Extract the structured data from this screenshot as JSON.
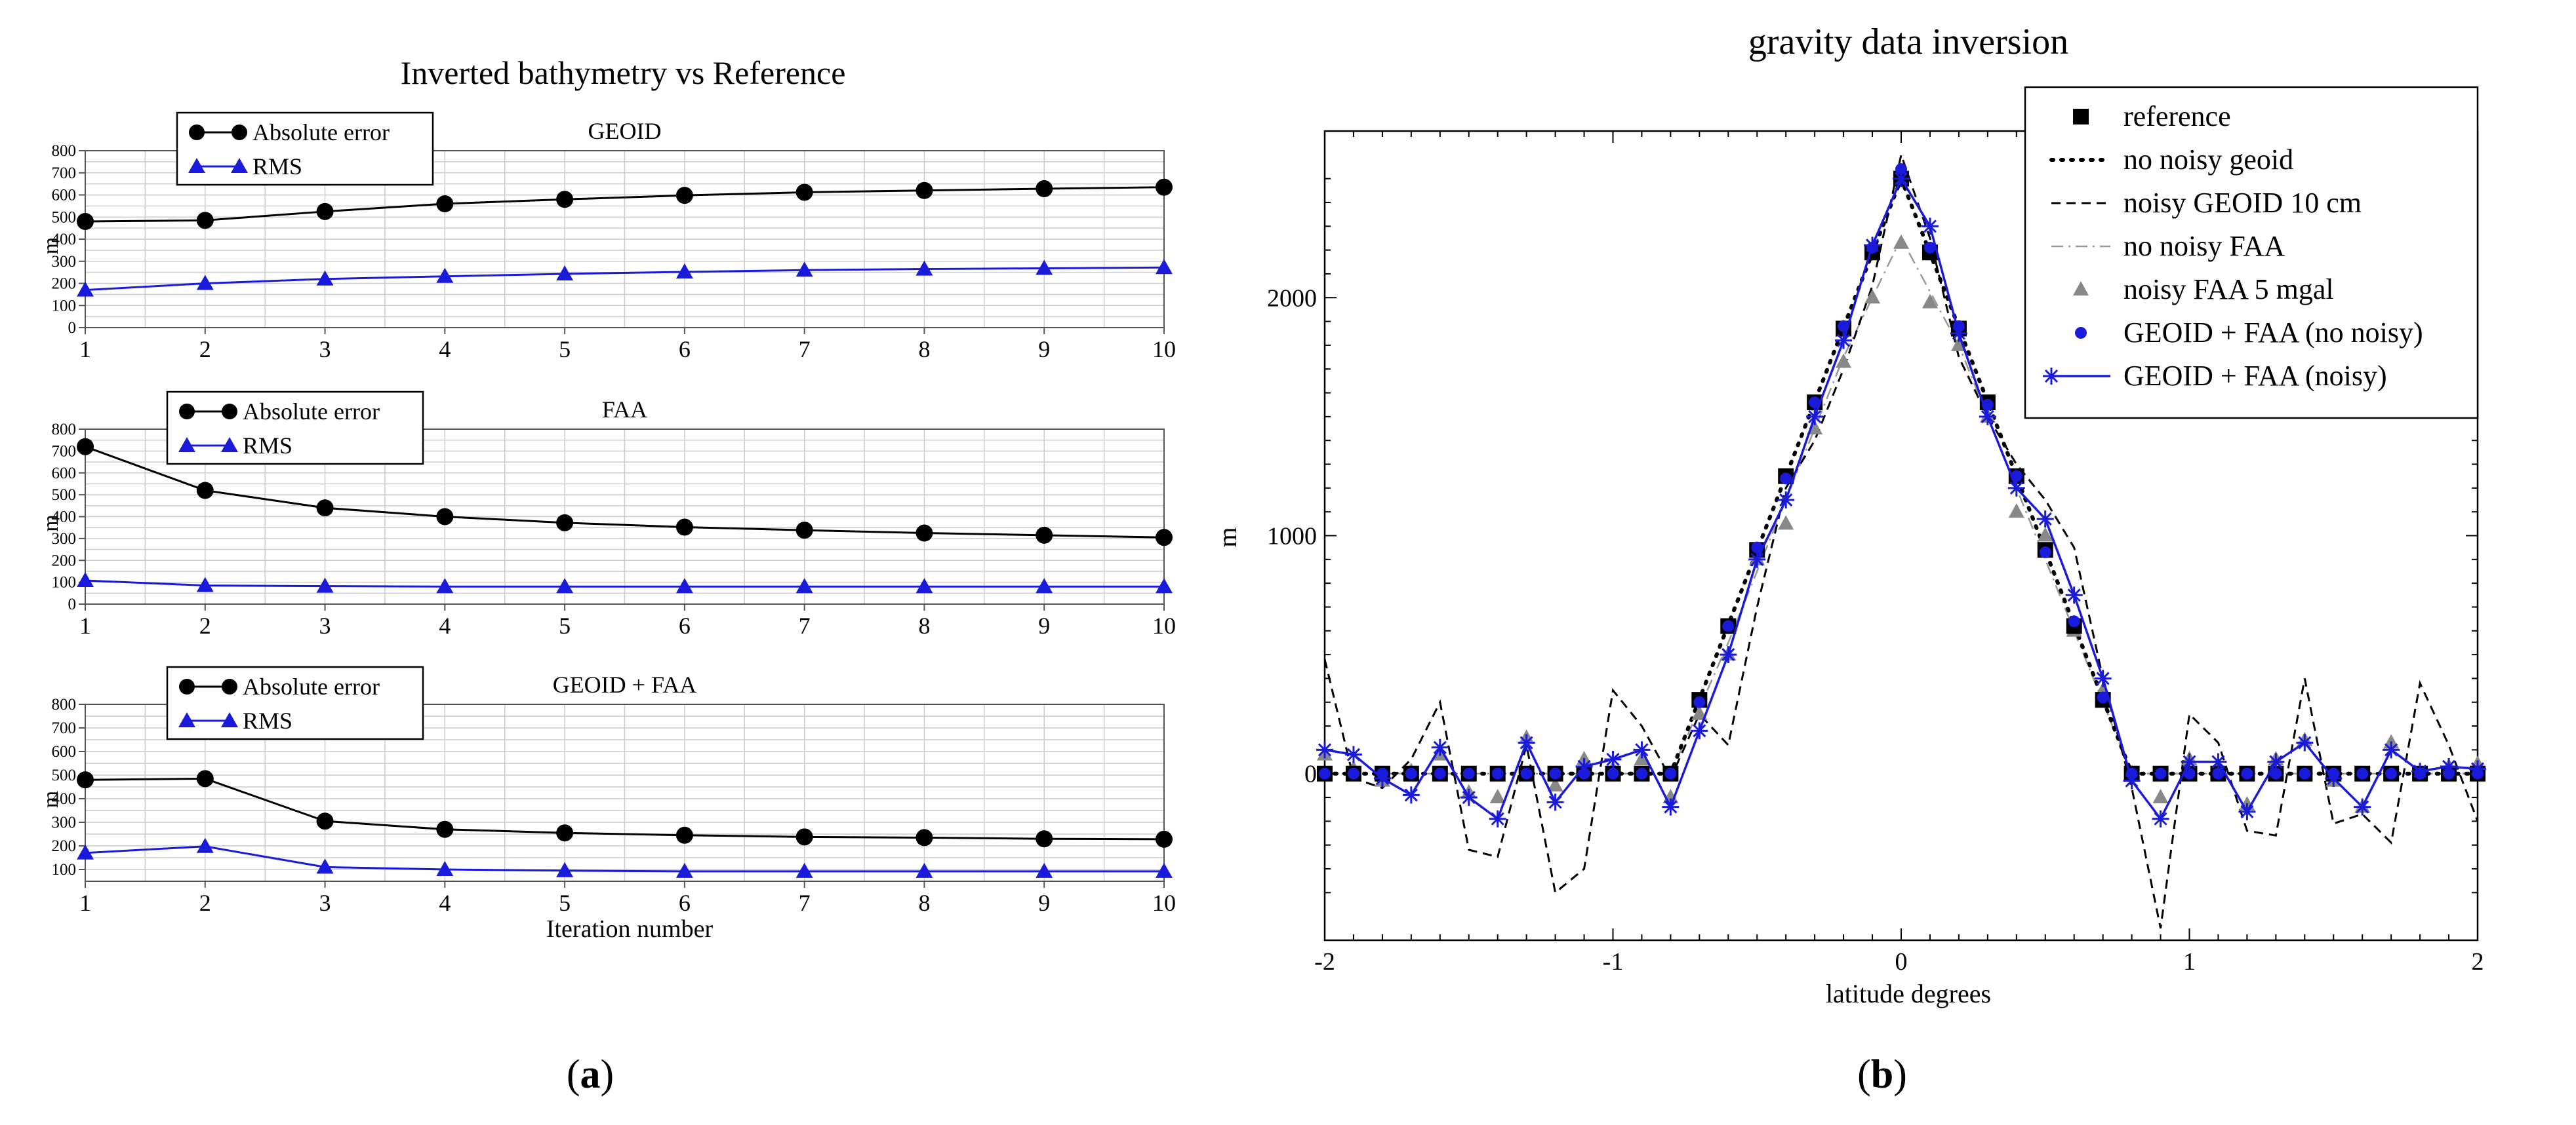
{
  "panel_a": {
    "title": "Inverted bathymetry vs Reference",
    "caption_open": "(",
    "caption_letter": "a",
    "caption_close": ")",
    "xlabel": "Iteration number",
    "ylabel": "m",
    "legend_abs": "Absolute error",
    "legend_rms": "RMS",
    "colors": {
      "abs": "#000000",
      "rms": "#1a1adb",
      "grid": "#cccccc"
    }
  },
  "panel_b": {
    "title": "gravity data inversion",
    "caption_open": "(",
    "caption_letter": "b",
    "caption_close": ")",
    "xlabel": "latitude degrees",
    "ylabel": "m",
    "legend": [
      "reference",
      "no noisy geoid",
      "noisy GEOID 10 cm",
      "no noisy FAA",
      "noisy FAA 5 mgal",
      "GEOID + FAA (no noisy)",
      "GEOID + FAA (noisy)"
    ],
    "colors": {
      "ref": "#000000",
      "grey": "#888888",
      "blue": "#1a1adb"
    }
  },
  "chart_data": [
    {
      "type": "line",
      "title": "GEOID",
      "xlabel": "",
      "ylabel": "m",
      "x": [
        1,
        2,
        3,
        4,
        5,
        6,
        7,
        8,
        9,
        10
      ],
      "xticks": [
        "1",
        "2",
        "3",
        "4",
        "5",
        "6",
        "7",
        "8",
        "9",
        "10"
      ],
      "ylim": [
        0,
        800
      ],
      "yticks": [
        "0",
        "100",
        "200",
        "300",
        "400",
        "500",
        "600",
        "700",
        "800"
      ],
      "series": [
        {
          "name": "Absolute error",
          "values": [
            480,
            485,
            525,
            560,
            580,
            598,
            612,
            620,
            628,
            635
          ]
        },
        {
          "name": "RMS",
          "values": [
            170,
            200,
            220,
            232,
            243,
            252,
            260,
            265,
            268,
            272
          ]
        }
      ],
      "grid": true
    },
    {
      "type": "line",
      "title": "FAA",
      "xlabel": "",
      "ylabel": "m",
      "x": [
        1,
        2,
        3,
        4,
        5,
        6,
        7,
        8,
        9,
        10
      ],
      "xticks": [
        "1",
        "2",
        "3",
        "4",
        "5",
        "6",
        "7",
        "8",
        "9",
        "10"
      ],
      "ylim": [
        0,
        800
      ],
      "yticks": [
        "0",
        "100",
        "200",
        "300",
        "400",
        "500",
        "600",
        "700",
        "800"
      ],
      "series": [
        {
          "name": "Absolute error",
          "values": [
            720,
            520,
            440,
            400,
            372,
            352,
            338,
            325,
            315,
            305
          ]
        },
        {
          "name": "RMS",
          "values": [
            108,
            85,
            82,
            80,
            80,
            80,
            80,
            80,
            80,
            80
          ]
        }
      ],
      "grid": true
    },
    {
      "type": "line",
      "title": "GEOID + FAA",
      "xlabel": "Iteration number",
      "ylabel": "m",
      "x": [
        1,
        2,
        3,
        4,
        5,
        6,
        7,
        8,
        9,
        10
      ],
      "xticks": [
        "1",
        "2",
        "3",
        "4",
        "5",
        "6",
        "7",
        "8",
        "9",
        "10"
      ],
      "ylim": [
        50,
        800
      ],
      "yticks": [
        "100",
        "200",
        "300",
        "400",
        "500",
        "600",
        "700",
        "800"
      ],
      "series": [
        {
          "name": "Absolute error",
          "values": [
            480,
            485,
            305,
            270,
            255,
            245,
            238,
            235,
            230,
            228
          ]
        },
        {
          "name": "RMS",
          "values": [
            170,
            198,
            110,
            100,
            95,
            92,
            92,
            92,
            92,
            92
          ]
        }
      ],
      "grid": true
    },
    {
      "type": "line",
      "title": "gravity data inversion",
      "xlabel": "latitude degrees",
      "ylabel": "m",
      "xlim": [
        -2,
        2
      ],
      "ylim": [
        -700,
        2700
      ],
      "xticks": [
        "-2",
        "-1",
        "0",
        "1",
        "2"
      ],
      "yticks": [
        "0",
        "1000",
        "2000"
      ],
      "legend_position": "top-right",
      "series": [
        {
          "name": "reference",
          "x": [
            -2,
            -1.9,
            -1.8,
            -1.7,
            -1.6,
            -1.5,
            -1.4,
            -1.3,
            -1.2,
            -1.1,
            -1,
            -0.9,
            -0.8,
            -0.7,
            -0.6,
            -0.5,
            -0.4,
            -0.3,
            -0.2,
            -0.1,
            0,
            0.1,
            0.2,
            0.3,
            0.4,
            0.5,
            0.6,
            0.7,
            0.8,
            0.9,
            1,
            1.1,
            1.2,
            1.3,
            1.4,
            1.5,
            1.6,
            1.7,
            1.8,
            1.9,
            2
          ],
          "y": [
            0,
            0,
            0,
            0,
            0,
            0,
            0,
            0,
            0,
            0,
            0,
            0,
            0,
            310,
            620,
            940,
            1250,
            1560,
            1870,
            2190,
            2500,
            2190,
            1870,
            1560,
            1250,
            940,
            620,
            310,
            0,
            0,
            0,
            0,
            0,
            0,
            0,
            0,
            0,
            0,
            0,
            0,
            0
          ]
        },
        {
          "name": "no noisy geoid",
          "x": [
            -2,
            -0.8,
            0,
            0.8,
            2
          ],
          "y": [
            0,
            0,
            2500,
            0,
            0
          ]
        },
        {
          "name": "noisy GEOID 10 cm",
          "x": [
            -2,
            -1.9,
            -1.8,
            -1.7,
            -1.6,
            -1.5,
            -1.4,
            -1.3,
            -1.2,
            -1.1,
            -1,
            -0.9,
            -0.8,
            -0.7,
            -0.6,
            -0.5,
            -0.4,
            -0.3,
            -0.2,
            -0.1,
            0,
            0.1,
            0.2,
            0.3,
            0.4,
            0.5,
            0.6,
            0.7,
            0.8,
            0.9,
            1,
            1.1,
            1.2,
            1.3,
            1.4,
            1.5,
            1.6,
            1.7,
            1.8,
            1.9,
            2
          ],
          "y": [
            480,
            -20,
            -60,
            60,
            300,
            -320,
            -350,
            120,
            -500,
            -400,
            350,
            200,
            -20,
            250,
            120,
            700,
            1200,
            1400,
            1700,
            2050,
            2600,
            2250,
            1750,
            1500,
            1300,
            1150,
            950,
            400,
            -60,
            -650,
            250,
            130,
            -240,
            -260,
            400,
            -210,
            -170,
            -290,
            380,
            120,
            -200
          ]
        },
        {
          "name": "no noisy FAA",
          "x": [
            -2,
            -0.8,
            -0.6,
            -0.4,
            -0.2,
            0,
            0.2,
            0.4,
            0.6,
            0.8,
            2
          ],
          "y": [
            0,
            0,
            550,
            1150,
            1750,
            2250,
            1800,
            1200,
            600,
            0,
            0
          ]
        },
        {
          "name": "noisy FAA 5 mgal",
          "x": [
            -2,
            -1.9,
            -1.8,
            -1.7,
            -1.6,
            -1.5,
            -1.4,
            -1.3,
            -1.2,
            -1.1,
            -1,
            -0.9,
            -0.8,
            -0.7,
            -0.6,
            -0.5,
            -0.4,
            -0.3,
            -0.2,
            -0.1,
            0,
            0.1,
            0.2,
            0.3,
            0.4,
            0.5,
            0.6,
            0.7,
            0.8,
            0.9,
            1,
            1.1,
            1.2,
            1.3,
            1.4,
            1.5,
            1.6,
            1.7,
            1.8,
            1.9,
            2
          ],
          "y": [
            80,
            20,
            -30,
            10,
            80,
            -80,
            -100,
            150,
            -50,
            60,
            20,
            60,
            -100,
            250,
            500,
            900,
            1050,
            1450,
            1730,
            2000,
            2230,
            1980,
            1800,
            1500,
            1100,
            1000,
            600,
            350,
            0,
            -100,
            60,
            20,
            -130,
            60,
            140,
            -30,
            -140,
            130,
            0,
            30,
            40
          ]
        },
        {
          "name": "GEOID + FAA (no noisy)",
          "x": [
            -2,
            -1.9,
            -1.8,
            -1.7,
            -1.6,
            -1.5,
            -1.4,
            -1.3,
            -1.2,
            -1.1,
            -1,
            -0.9,
            -0.8,
            -0.7,
            -0.6,
            -0.5,
            -0.4,
            -0.3,
            -0.2,
            -0.1,
            0,
            0.1,
            0.2,
            0.3,
            0.4,
            0.5,
            0.6,
            0.7,
            0.8,
            0.9,
            1,
            1.1,
            1.2,
            1.3,
            1.4,
            1.5,
            1.6,
            1.7,
            1.8,
            1.9,
            2
          ],
          "y": [
            0,
            0,
            0,
            0,
            0,
            0,
            0,
            0,
            0,
            0,
            0,
            0,
            0,
            300,
            620,
            950,
            1240,
            1560,
            1880,
            2210,
            2540,
            2210,
            1880,
            1550,
            1250,
            930,
            640,
            320,
            0,
            0,
            0,
            0,
            0,
            0,
            0,
            0,
            0,
            0,
            0,
            0,
            0
          ]
        },
        {
          "name": "GEOID + FAA (noisy)",
          "x": [
            -2,
            -1.9,
            -1.8,
            -1.7,
            -1.6,
            -1.5,
            -1.4,
            -1.3,
            -1.2,
            -1.1,
            -1,
            -0.9,
            -0.8,
            -0.7,
            -0.6,
            -0.5,
            -0.4,
            -0.3,
            -0.2,
            -0.1,
            0,
            0.1,
            0.2,
            0.3,
            0.4,
            0.5,
            0.6,
            0.7,
            0.8,
            0.9,
            1,
            1.1,
            1.2,
            1.3,
            1.4,
            1.5,
            1.6,
            1.7,
            1.8,
            1.9,
            2
          ],
          "y": [
            100,
            80,
            -20,
            -90,
            110,
            -100,
            -190,
            130,
            -120,
            30,
            60,
            100,
            -140,
            180,
            500,
            900,
            1150,
            1500,
            1820,
            2220,
            2500,
            2300,
            1850,
            1500,
            1200,
            1070,
            750,
            400,
            -30,
            -190,
            50,
            50,
            -160,
            50,
            130,
            -20,
            -140,
            100,
            10,
            30,
            20
          ]
        }
      ]
    }
  ]
}
